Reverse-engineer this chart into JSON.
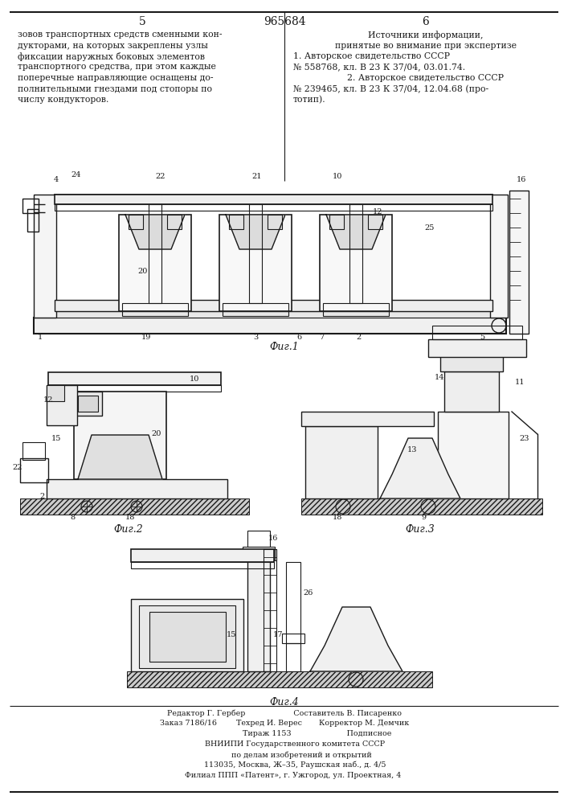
{
  "page_number_left": "5",
  "page_number_right": "6",
  "patent_number": "965684",
  "left_text_lines": [
    "зовов транспортных средств сменными кон-",
    "дукторами, на которых закреплены узлы",
    "фиксации наружных боковых элементов",
    "транспортного средства, при этом каждые",
    "поперечные направляющие оснащены до-",
    "полнительными гнездами под стопоры по",
    "числу кондукторов."
  ],
  "right_text_lines": [
    [
      "center",
      "Источники информации,"
    ],
    [
      "center",
      "принятые во внимание при экспертизе"
    ],
    [
      "left",
      "1. Авторское свидетельство СССР"
    ],
    [
      "left",
      "№ 558768, кл. В 23 К 37/04, 03.01.74."
    ],
    [
      "center",
      "2. Авторское свидетельство СССР"
    ],
    [
      "left",
      "№ 239465, кл. В 23 К 37/04, 12.04.68 (про-"
    ],
    [
      "left",
      "тотип)."
    ]
  ],
  "fig1_caption": "Фиг.1",
  "fig2_caption": "Фиг.2",
  "fig3_caption": "Фиг.3",
  "fig4_caption": "Фиг.4",
  "footer_lines": [
    "Редактор Г. Гербер                    Составитель В. Писаренко",
    "Заказ 7186/16        Техред И. Верес       Корректор М. Демчик",
    "                           Тираж 1153                       Подписное",
    "         ВНИИПИ Государственного комитета СССР",
    "              по делам изобретений и открытий",
    "         113035, Москва, Ж–35, Раушская наб., д. 4/5",
    "       Филиал ППП «Патент», г. Ужгород, ул. Проектная, 4"
  ],
  "bg_color": "#ffffff",
  "line_color": "#1a1a1a",
  "text_color": "#1a1a1a"
}
